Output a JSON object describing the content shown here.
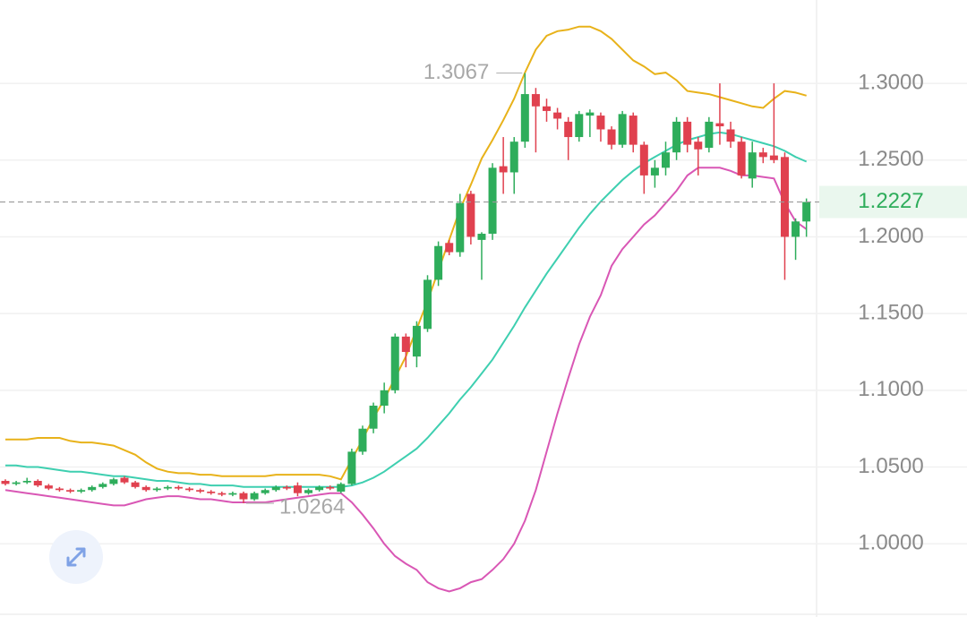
{
  "chart_data": {
    "type": "candlestick",
    "ylim": [
      0.9523,
      1.3543
    ],
    "yticks": [
      {
        "value": 1.3,
        "label": "1.3000"
      },
      {
        "value": 1.25,
        "label": "1.2500"
      },
      {
        "value": 1.2,
        "label": "1.2000"
      },
      {
        "value": 1.15,
        "label": "1.1500"
      },
      {
        "value": 1.1,
        "label": "1.1000"
      },
      {
        "value": 1.05,
        "label": "1.0500"
      },
      {
        "value": 1.0,
        "label": "1.0000"
      }
    ],
    "grid": true,
    "up_color": "#2ead5b",
    "down_color": "#e0414f",
    "last_price": 1.2227,
    "high_label": 1.3067,
    "low_label": 1.0264,
    "open": [
      1.041,
      1.039,
      1.04,
      1.041,
      1.038,
      1.036,
      1.035,
      1.034,
      1.035,
      1.037,
      1.039,
      1.043,
      1.04,
      1.037,
      1.035,
      1.036,
      1.037,
      1.036,
      1.035,
      1.034,
      1.033,
      1.032,
      1.033,
      1.029,
      1.033,
      1.035,
      1.037,
      1.038,
      1.033,
      1.035,
      1.037,
      1.034,
      1.039,
      1.06,
      1.075,
      1.09,
      1.1,
      1.135,
      1.122,
      1.14,
      1.172,
      1.196,
      1.19,
      1.228,
      1.198,
      1.202,
      1.246,
      1.242,
      1.262,
      1.293,
      1.285,
      1.281,
      1.275,
      1.265,
      1.279,
      1.279,
      1.27,
      1.26,
      1.279,
      1.26,
      1.24,
      1.245,
      1.255,
      1.275,
      1.262,
      1.258,
      1.274,
      1.27,
      1.262,
      1.238,
      1.255,
      1.253,
      1.252,
      1.2,
      1.21
    ],
    "high": [
      1.042,
      1.041,
      1.043,
      1.042,
      1.039,
      1.037,
      1.036,
      1.036,
      1.038,
      1.04,
      1.043,
      1.044,
      1.041,
      1.038,
      1.037,
      1.038,
      1.038,
      1.037,
      1.036,
      1.035,
      1.034,
      1.034,
      1.034,
      1.034,
      1.036,
      1.038,
      1.038,
      1.04,
      1.036,
      1.038,
      1.038,
      1.04,
      1.062,
      1.077,
      1.092,
      1.105,
      1.137,
      1.137,
      1.145,
      1.175,
      1.197,
      1.198,
      1.228,
      1.23,
      1.203,
      1.248,
      1.265,
      1.265,
      1.3067,
      1.297,
      1.29,
      1.284,
      1.278,
      1.282,
      1.283,
      1.281,
      1.272,
      1.282,
      1.281,
      1.262,
      1.25,
      1.262,
      1.278,
      1.278,
      1.265,
      1.278,
      1.3,
      1.275,
      1.265,
      1.262,
      1.258,
      1.3,
      1.255,
      1.212,
      1.225
    ],
    "low": [
      1.038,
      1.038,
      1.039,
      1.037,
      1.035,
      1.034,
      1.033,
      1.033,
      1.034,
      1.036,
      1.038,
      1.039,
      1.036,
      1.034,
      1.034,
      1.035,
      1.035,
      1.034,
      1.033,
      1.032,
      1.031,
      1.031,
      1.0264,
      1.028,
      1.032,
      1.034,
      1.035,
      1.031,
      1.032,
      1.034,
      1.035,
      1.033,
      1.038,
      1.058,
      1.072,
      1.085,
      1.098,
      1.115,
      1.115,
      1.138,
      1.168,
      1.188,
      1.187,
      1.195,
      1.172,
      1.198,
      1.228,
      1.228,
      1.258,
      1.255,
      1.275,
      1.27,
      1.25,
      1.262,
      1.265,
      1.262,
      1.257,
      1.258,
      1.255,
      1.228,
      1.232,
      1.24,
      1.25,
      1.255,
      1.24,
      1.255,
      1.26,
      1.258,
      1.238,
      1.232,
      1.248,
      1.248,
      1.172,
      1.185,
      1.2
    ],
    "close": [
      1.039,
      1.04,
      1.041,
      1.038,
      1.036,
      1.035,
      1.034,
      1.035,
      1.037,
      1.039,
      1.042,
      1.04,
      1.037,
      1.035,
      1.036,
      1.037,
      1.036,
      1.035,
      1.034,
      1.033,
      1.032,
      1.033,
      1.029,
      1.033,
      1.035,
      1.037,
      1.036,
      1.033,
      1.035,
      1.037,
      1.036,
      1.039,
      1.06,
      1.075,
      1.09,
      1.1,
      1.135,
      1.125,
      1.142,
      1.172,
      1.194,
      1.19,
      1.222,
      1.2,
      1.202,
      1.245,
      1.242,
      1.262,
      1.293,
      1.285,
      1.282,
      1.277,
      1.265,
      1.28,
      1.281,
      1.27,
      1.26,
      1.28,
      1.26,
      1.24,
      1.245,
      1.255,
      1.275,
      1.26,
      1.257,
      1.275,
      1.272,
      1.262,
      1.24,
      1.255,
      1.252,
      1.25,
      1.2,
      1.21,
      1.2227
    ],
    "series": [
      {
        "color": "#e8b21a",
        "values": [
          1.068,
          1.068,
          1.068,
          1.069,
          1.069,
          1.069,
          1.067,
          1.066,
          1.066,
          1.065,
          1.064,
          1.061,
          1.058,
          1.053,
          1.049,
          1.047,
          1.046,
          1.046,
          1.045,
          1.045,
          1.044,
          1.044,
          1.044,
          1.044,
          1.044,
          1.045,
          1.045,
          1.045,
          1.045,
          1.045,
          1.044,
          1.042,
          1.055,
          1.068,
          1.082,
          1.094,
          1.108,
          1.122,
          1.14,
          1.158,
          1.178,
          1.198,
          1.218,
          1.234,
          1.251,
          1.263,
          1.276,
          1.29,
          1.307,
          1.322,
          1.331,
          1.334,
          1.335,
          1.337,
          1.337,
          1.334,
          1.329,
          1.322,
          1.315,
          1.311,
          1.306,
          1.307,
          1.302,
          1.295,
          1.294,
          1.293,
          1.291,
          1.289,
          1.287,
          1.285,
          1.284,
          1.29,
          1.295,
          1.294,
          1.292
        ]
      },
      {
        "color": "#3ecfb0",
        "values": [
          1.051,
          1.051,
          1.05,
          1.05,
          1.049,
          1.048,
          1.047,
          1.047,
          1.046,
          1.045,
          1.044,
          1.044,
          1.043,
          1.042,
          1.041,
          1.041,
          1.04,
          1.039,
          1.039,
          1.038,
          1.038,
          1.038,
          1.037,
          1.037,
          1.037,
          1.037,
          1.037,
          1.037,
          1.037,
          1.037,
          1.037,
          1.037,
          1.038,
          1.04,
          1.043,
          1.047,
          1.052,
          1.057,
          1.062,
          1.069,
          1.077,
          1.085,
          1.094,
          1.102,
          1.111,
          1.12,
          1.131,
          1.142,
          1.154,
          1.165,
          1.176,
          1.186,
          1.196,
          1.206,
          1.215,
          1.223,
          1.23,
          1.237,
          1.243,
          1.248,
          1.252,
          1.256,
          1.26,
          1.263,
          1.265,
          1.267,
          1.268,
          1.267,
          1.265,
          1.263,
          1.261,
          1.259,
          1.256,
          1.252,
          1.249
        ]
      },
      {
        "color": "#d957b5",
        "values": [
          1.035,
          1.034,
          1.033,
          1.032,
          1.031,
          1.03,
          1.029,
          1.028,
          1.027,
          1.026,
          1.025,
          1.025,
          1.027,
          1.029,
          1.03,
          1.031,
          1.031,
          1.03,
          1.029,
          1.029,
          1.028,
          1.027,
          1.027,
          1.027,
          1.027,
          1.028,
          1.029,
          1.03,
          1.031,
          1.032,
          1.033,
          1.033,
          1.027,
          1.019,
          1.01,
          1.0,
          0.992,
          0.987,
          0.983,
          0.975,
          0.971,
          0.969,
          0.971,
          0.975,
          0.977,
          0.983,
          0.99,
          1.0,
          1.015,
          1.035,
          1.06,
          1.085,
          1.108,
          1.13,
          1.148,
          1.162,
          1.181,
          1.192,
          1.2,
          1.208,
          1.214,
          1.222,
          1.23,
          1.24,
          1.245,
          1.245,
          1.245,
          1.243,
          1.24,
          1.24,
          1.239,
          1.238,
          1.222,
          1.21,
          1.205
        ]
      }
    ]
  }
}
